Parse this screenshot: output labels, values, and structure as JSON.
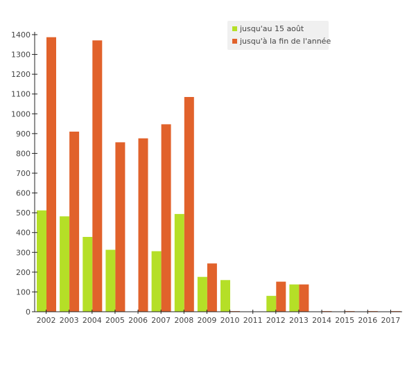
{
  "chart_data": {
    "type": "bar",
    "categories": [
      "2002",
      "2003",
      "2004",
      "2005",
      "2006",
      "2007",
      "2008",
      "2009",
      "2010",
      "2011",
      "2012",
      "2013",
      "2014",
      "2015",
      "2016",
      "2017"
    ],
    "series": [
      {
        "name": "jusqu'au 15 août",
        "color": "#b5df27",
        "values": [
          512,
          482,
          378,
          313,
          0,
          306,
          494,
          176,
          160,
          0,
          80,
          138,
          0,
          0,
          0,
          0
        ]
      },
      {
        "name": "jusqu'à la fin de l'année",
        "color": "#e1622b",
        "values": [
          1387,
          910,
          1371,
          856,
          876,
          947,
          1085,
          244,
          3,
          0,
          152,
          138,
          3,
          3,
          3,
          3
        ]
      }
    ],
    "ylim": [
      0,
      1400
    ],
    "yticks": [
      0,
      100,
      200,
      300,
      400,
      500,
      600,
      700,
      800,
      900,
      1000,
      1100,
      1200,
      1300,
      1400
    ],
    "grid": false,
    "legend_position": "top-right",
    "title": "",
    "xlabel": "",
    "ylabel": ""
  }
}
